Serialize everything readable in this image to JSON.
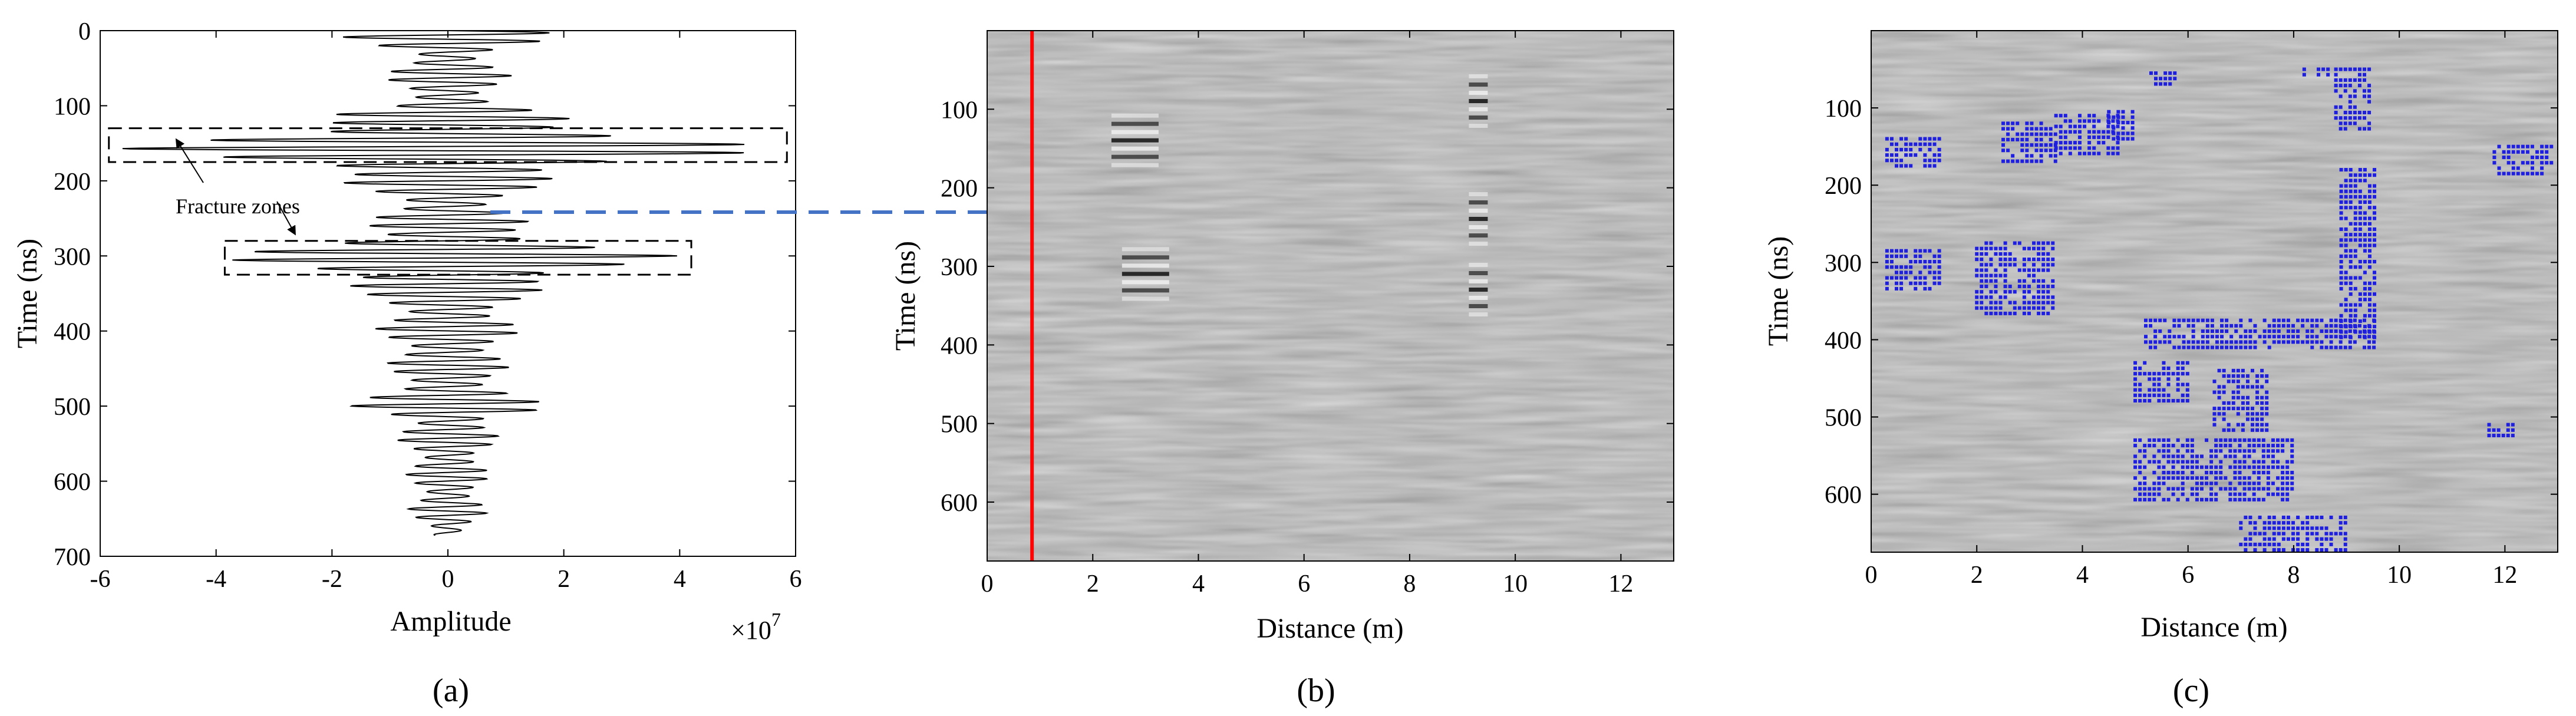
{
  "colors": {
    "trace": "#000000",
    "marker_line": "#ff0000",
    "arrow": "#4472c4",
    "detections": "#1f1fe0",
    "radargram_bg": "#808080"
  },
  "annotations": {
    "fracture_zones": "Fracture zones"
  },
  "chart_data": [
    {
      "type": "line",
      "panel_label": "(a)",
      "xlabel": "Amplitude",
      "ylabel": "Time (ns)",
      "x_exponent": "×10",
      "x_exponent_power": "7",
      "xlim": [
        -6,
        6
      ],
      "ylim": [
        0,
        700
      ],
      "y_reversed": true,
      "xticks": [
        "-6",
        "-4",
        "-2",
        "0",
        "2",
        "4",
        "6"
      ],
      "yticks": [
        "0",
        "100",
        "200",
        "300",
        "400",
        "500",
        "600",
        "700"
      ],
      "fracture_zones_ns": [
        [
          130,
          175
        ],
        [
          280,
          325
        ]
      ],
      "envelope": {
        "time_ns": [
          0,
          10,
          30,
          60,
          100,
          130,
          145,
          160,
          175,
          190,
          210,
          240,
          270,
          285,
          300,
          315,
          330,
          350,
          380,
          420,
          460,
          495,
          505,
          520,
          560,
          600,
          640,
          672
        ],
        "amplitude_x1e7": [
          2.2,
          1.8,
          0.9,
          1.1,
          1.0,
          3.5,
          5.3,
          5.7,
          4.5,
          2.4,
          1.5,
          1.2,
          1.6,
          3.5,
          4.0,
          3.5,
          2.8,
          1.4,
          1.3,
          1.2,
          1.0,
          1.6,
          1.9,
          1.0,
          0.8,
          0.7,
          0.7,
          0.4
        ]
      }
    },
    {
      "type": "heatmap",
      "panel_label": "(b)",
      "xlabel": "Distance (m)",
      "ylabel": "Time (ns)",
      "xlim": [
        0,
        13
      ],
      "ylim": [
        0,
        675
      ],
      "y_reversed": true,
      "xticks": [
        "0",
        "2",
        "4",
        "6",
        "8",
        "10",
        "12"
      ],
      "yticks": [
        "100",
        "200",
        "300",
        "400",
        "500",
        "600"
      ],
      "marker_distance_m": 0.85,
      "strong_reflectors": [
        {
          "distance_m": 9.3,
          "time_ns": 90
        },
        {
          "distance_m": 9.3,
          "time_ns": 240
        },
        {
          "distance_m": 9.3,
          "time_ns": 330
        },
        {
          "distance_m": 3.0,
          "time_ns": 310
        },
        {
          "distance_m": 2.8,
          "time_ns": 140
        }
      ]
    },
    {
      "type": "scatter",
      "panel_label": "(c)",
      "xlabel": "Distance (m)",
      "ylabel": "Time (ns)",
      "xlim": [
        0,
        13
      ],
      "ylim": [
        0,
        675
      ],
      "y_reversed": true,
      "xticks": [
        "0",
        "2",
        "4",
        "6",
        "8",
        "10",
        "12"
      ],
      "yticks": [
        "100",
        "200",
        "300",
        "400",
        "500",
        "600"
      ],
      "detected_regions": [
        {
          "x": [
            0.3,
            1.3
          ],
          "t": [
            140,
            175
          ]
        },
        {
          "x": [
            0.3,
            1.3
          ],
          "t": [
            285,
            335
          ]
        },
        {
          "x": [
            2.5,
            3.5
          ],
          "t": [
            120,
            175
          ]
        },
        {
          "x": [
            2.0,
            3.5
          ],
          "t": [
            275,
            370
          ]
        },
        {
          "x": [
            3.5,
            4.7
          ],
          "t": [
            110,
            160
          ]
        },
        {
          "x": [
            4.5,
            5.0
          ],
          "t": [
            105,
            140
          ]
        },
        {
          "x": [
            5.3,
            5.8
          ],
          "t": [
            55,
            70
          ]
        },
        {
          "x": [
            8.2,
            8.7
          ],
          "t": [
            50,
            60
          ]
        },
        {
          "x": [
            8.8,
            9.5
          ],
          "t": [
            50,
            130
          ]
        },
        {
          "x": [
            8.9,
            9.6
          ],
          "t": [
            180,
            400
          ]
        },
        {
          "x": [
            5.2,
            9.6
          ],
          "t": [
            375,
            415
          ]
        },
        {
          "x": [
            5.0,
            6.0
          ],
          "t": [
            430,
            480
          ]
        },
        {
          "x": [
            6.5,
            7.5
          ],
          "t": [
            440,
            520
          ]
        },
        {
          "x": [
            5.0,
            8.0
          ],
          "t": [
            530,
            610
          ]
        },
        {
          "x": [
            7.0,
            9.0
          ],
          "t": [
            630,
            675
          ]
        },
        {
          "x": [
            11.8,
            12.9
          ],
          "t": [
            150,
            190
          ]
        },
        {
          "x": [
            11.7,
            12.2
          ],
          "t": [
            510,
            530
          ]
        }
      ]
    }
  ]
}
